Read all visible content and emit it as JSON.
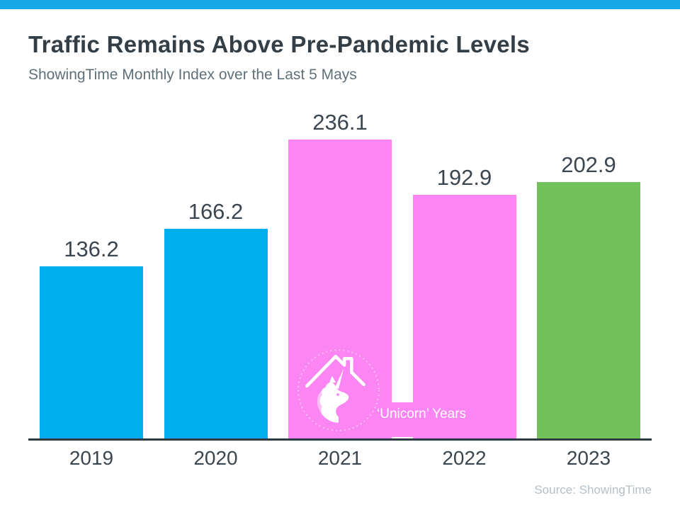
{
  "page": {
    "title": "Traffic Remains Above Pre-Pandemic Levels",
    "subtitle": "ShowingTime Monthly Index over the Last 5 Mays",
    "source": "Source: ShowingTime"
  },
  "chart_data": {
    "type": "bar",
    "title": "Traffic Remains Above Pre-Pandemic Levels",
    "subtitle": "ShowingTime Monthly Index over the Last 5 Mays",
    "categories": [
      "2019",
      "2020",
      "2021",
      "2022",
      "2023"
    ],
    "values": [
      136.2,
      166.2,
      236.1,
      192.9,
      202.9
    ],
    "value_labels": [
      "136.2",
      "166.2",
      "236.1",
      "192.9",
      "202.9"
    ],
    "bar_colors": [
      "#00aeef",
      "#00aeef",
      "#fb86f3",
      "#fb86f3",
      "#72c25c"
    ],
    "ylim": [
      0,
      236.1
    ],
    "xlabel": "",
    "ylabel": "",
    "grid": false,
    "legend": false,
    "annotation": {
      "label": "‘Unicorn’ Years",
      "applies_to": [
        "2021",
        "2022"
      ],
      "icon": "unicorn-house-icon",
      "text_color": "#ffffff"
    },
    "source": "Source: ShowingTime",
    "colors": {
      "blue": "#00aeef",
      "pink": "#fb86f3",
      "green": "#72c25c",
      "top_strip": "#18a8e8",
      "axis": "#2e3a42",
      "title_text": "#333e47",
      "subtitle_text": "#5f7079",
      "label_text": "#3b4650",
      "annotation_text": "#ffffff",
      "source_text": "#b5bfc6"
    }
  }
}
